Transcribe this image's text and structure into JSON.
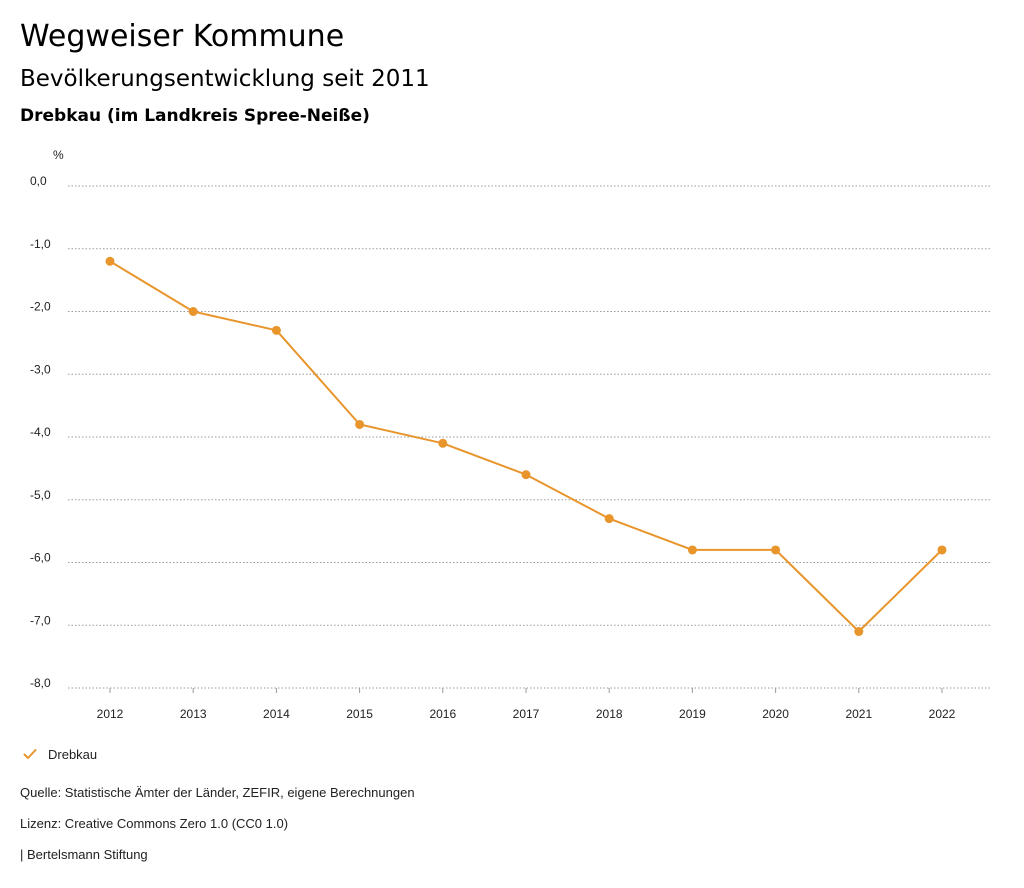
{
  "header": {
    "title": "Wegweiser Kommune",
    "subtitle": "Bevölkerungsentwicklung seit 2011",
    "region": "Drebkau (im Landkreis Spree-Neiße)"
  },
  "chart_data": {
    "type": "line",
    "ylabel": "%",
    "xlabel": "",
    "x": [
      "2012",
      "2013",
      "2014",
      "2015",
      "2016",
      "2017",
      "2018",
      "2019",
      "2020",
      "2021",
      "2022"
    ],
    "series": [
      {
        "name": "Drebkau",
        "color": "#e8952c",
        "values": [
          -1.2,
          -2.0,
          -2.3,
          -3.8,
          -4.1,
          -4.6,
          -5.3,
          -5.8,
          -5.8,
          -7.1,
          -5.8
        ]
      }
    ],
    "ylim": [
      -8.0,
      0.0
    ],
    "yticks": [
      "0,0",
      "-1,0",
      "-2,0",
      "-3,0",
      "-4,0",
      "-5,0",
      "-6,0",
      "-7,0",
      "-8,0"
    ],
    "grid": true,
    "legend_position": "bottom-left"
  },
  "legend": {
    "label": "Drebkau",
    "icon": "check-icon"
  },
  "footer": {
    "source": "Quelle: Statistische Ämter der Länder, ZEFIR, eigene Berechnungen",
    "license": "Lizenz: Creative Commons Zero 1.0 (CC0 1.0)",
    "organization": "| Bertelsmann Stiftung"
  }
}
